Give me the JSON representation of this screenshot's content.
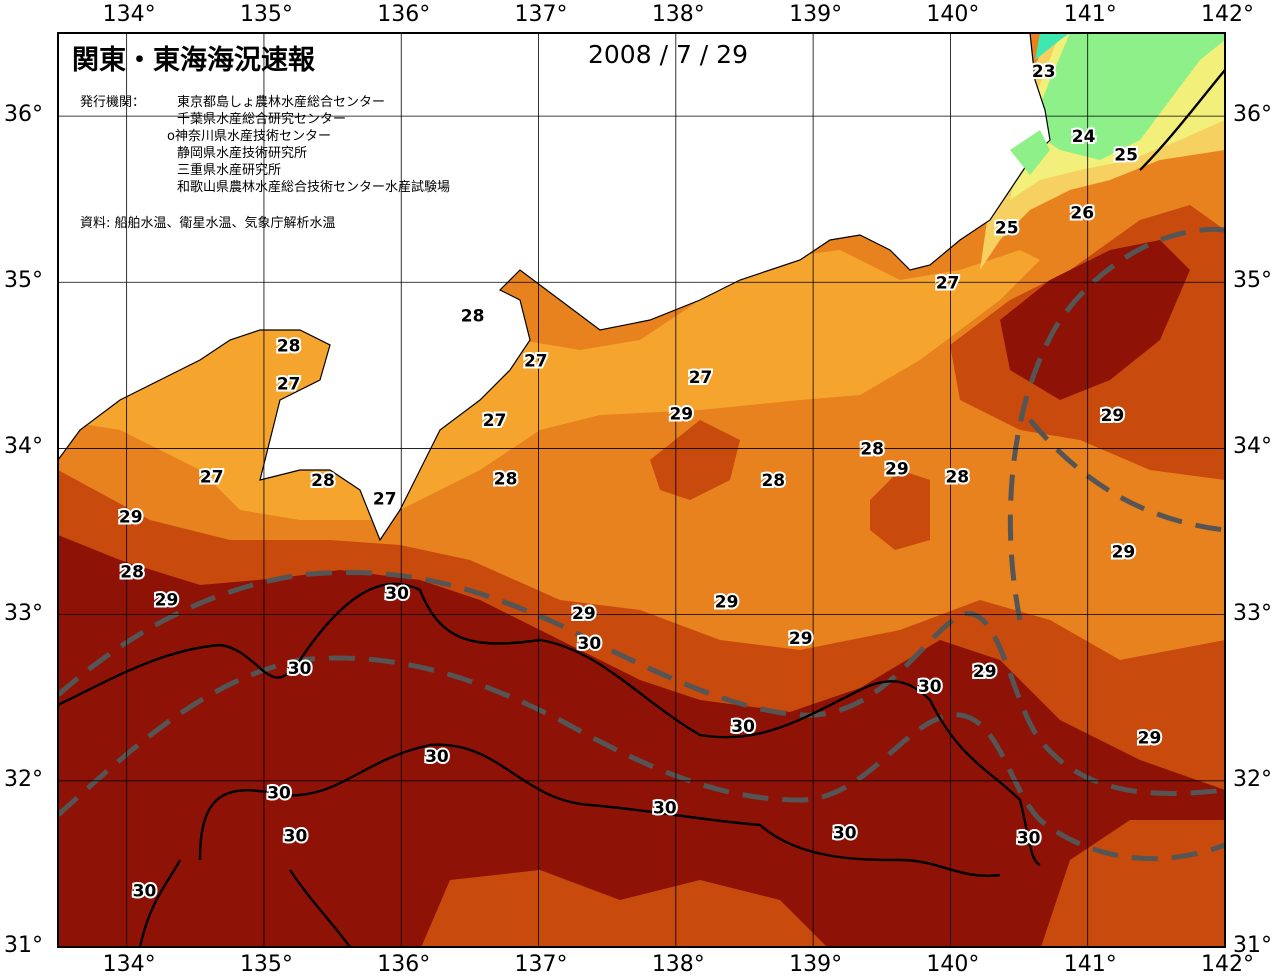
{
  "header": {
    "title": "関東・東海海況速報",
    "date": "2008 / 7 / 29"
  },
  "issuers": {
    "label": "発行機関：",
    "organizations": [
      "東京都島しょ農林水産総合センター",
      "千葉県水産総合研究センター",
      "神奈川県水産技術センター",
      "静岡県水産技術研究所",
      "三重県水産研究所",
      "和歌山県農林水産総合技術センター水産試験場"
    ],
    "marked_index": 2
  },
  "sources": "資料: 船舶水温、衛星水温、気象庁解析水温",
  "axes": {
    "longitude_ticks": [
      "134°",
      "135°",
      "136°",
      "137°",
      "138°",
      "139°",
      "140°",
      "141°",
      "142°"
    ],
    "latitude_ticks": [
      "31°",
      "32°",
      "33°",
      "34°",
      "35°",
      "36°"
    ],
    "lon_range": [
      133.5,
      142.0
    ],
    "lat_range": [
      31.0,
      36.5
    ]
  },
  "legend_colors": {
    "23": "#3fe8b0",
    "24": "#8ef088",
    "25": "#f2f07a",
    "26": "#f6d060",
    "27": "#f5a52e",
    "28": "#e8821e",
    "29": "#c84a0c",
    "30": "#8e1205",
    "land": "#ffffff",
    "kuroshio_axis": "#555555"
  },
  "contour_labels": [
    {
      "text": "23",
      "lon": 140.68,
      "lat": 36.27
    },
    {
      "text": "24",
      "lon": 140.97,
      "lat": 35.88
    },
    {
      "text": "25",
      "lon": 141.28,
      "lat": 35.77
    },
    {
      "text": "25",
      "lon": 140.41,
      "lat": 35.33
    },
    {
      "text": "26",
      "lon": 140.96,
      "lat": 35.42
    },
    {
      "text": "27",
      "lon": 139.98,
      "lat": 35.0
    },
    {
      "text": "28",
      "lon": 136.52,
      "lat": 34.8
    },
    {
      "text": "28",
      "lon": 135.18,
      "lat": 34.62
    },
    {
      "text": "27",
      "lon": 135.18,
      "lat": 34.39
    },
    {
      "text": "27",
      "lon": 136.98,
      "lat": 34.53
    },
    {
      "text": "27",
      "lon": 138.18,
      "lat": 34.43
    },
    {
      "text": "29",
      "lon": 138.04,
      "lat": 34.21
    },
    {
      "text": "27",
      "lon": 136.68,
      "lat": 34.17
    },
    {
      "text": "27",
      "lon": 134.62,
      "lat": 33.83
    },
    {
      "text": "28",
      "lon": 135.43,
      "lat": 33.81
    },
    {
      "text": "27",
      "lon": 135.88,
      "lat": 33.7
    },
    {
      "text": "28",
      "lon": 136.76,
      "lat": 33.82
    },
    {
      "text": "28",
      "lon": 138.71,
      "lat": 33.81
    },
    {
      "text": "28",
      "lon": 139.43,
      "lat": 34.0
    },
    {
      "text": "29",
      "lon": 139.61,
      "lat": 33.88
    },
    {
      "text": "28",
      "lon": 140.05,
      "lat": 33.83
    },
    {
      "text": "29",
      "lon": 134.03,
      "lat": 33.59
    },
    {
      "text": "28",
      "lon": 134.04,
      "lat": 33.26
    },
    {
      "text": "29",
      "lon": 134.29,
      "lat": 33.09
    },
    {
      "text": "30",
      "lon": 135.97,
      "lat": 33.13
    },
    {
      "text": "29",
      "lon": 137.33,
      "lat": 33.01
    },
    {
      "text": "29",
      "lon": 138.37,
      "lat": 33.08
    },
    {
      "text": "30",
      "lon": 137.37,
      "lat": 32.83
    },
    {
      "text": "29",
      "lon": 138.91,
      "lat": 32.86
    },
    {
      "text": "29",
      "lon": 141.18,
      "lat": 34.2
    },
    {
      "text": "29",
      "lon": 141.26,
      "lat": 33.38
    },
    {
      "text": "30",
      "lon": 135.26,
      "lat": 32.68
    },
    {
      "text": "29",
      "lon": 140.25,
      "lat": 32.66
    },
    {
      "text": "30",
      "lon": 139.85,
      "lat": 32.57
    },
    {
      "text": "30",
      "lon": 138.49,
      "lat": 32.33
    },
    {
      "text": "29",
      "lon": 141.45,
      "lat": 32.26
    },
    {
      "text": "30",
      "lon": 136.26,
      "lat": 32.15
    },
    {
      "text": "30",
      "lon": 135.11,
      "lat": 31.93
    },
    {
      "text": "30",
      "lon": 137.92,
      "lat": 31.84
    },
    {
      "text": "30",
      "lon": 139.23,
      "lat": 31.69
    },
    {
      "text": "30",
      "lon": 140.57,
      "lat": 31.66
    },
    {
      "text": "30",
      "lon": 135.23,
      "lat": 31.67
    },
    {
      "text": "30",
      "lon": 134.13,
      "lat": 31.34
    }
  ]
}
